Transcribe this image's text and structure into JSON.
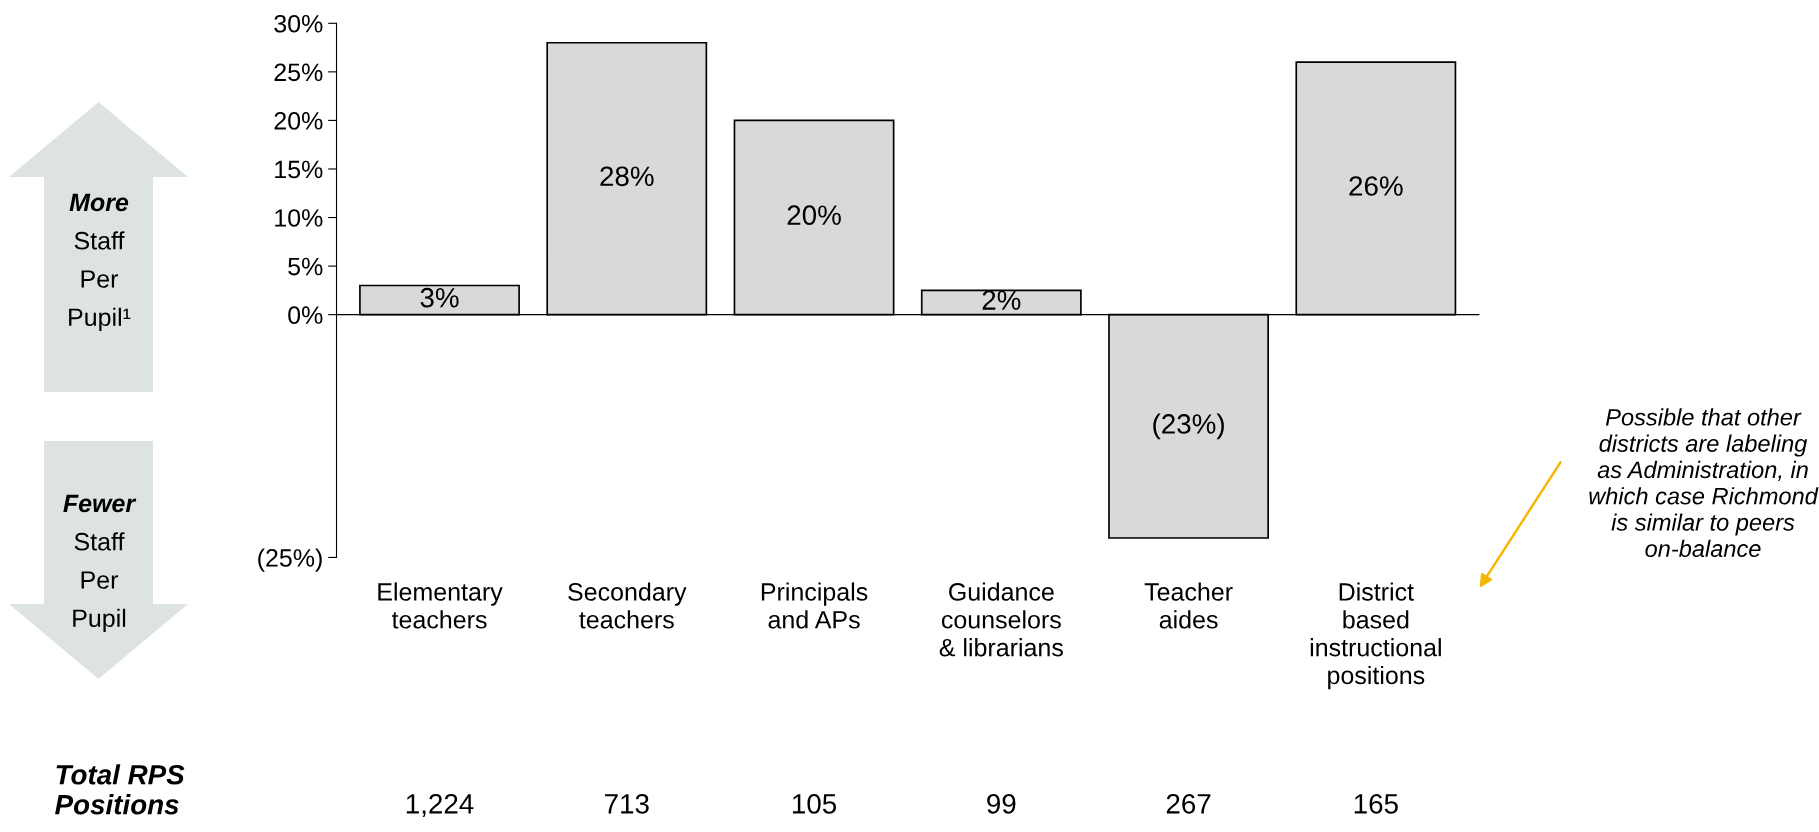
{
  "chart_data": {
    "type": "bar",
    "categories": [
      "Elementary\nteachers",
      "Secondary\nteachers",
      "Principals\nand APs",
      "Guidance\ncounselors\n& librarians",
      "Teacher\naides",
      "District\nbased\ninstructional\npositions"
    ],
    "values": [
      3,
      28,
      20,
      2.5,
      -23,
      26
    ],
    "value_labels": [
      "3%",
      "28%",
      "20%",
      "2%",
      "(23%)",
      "26%"
    ],
    "color": "#d9d9d9",
    "ylim": [
      -25,
      30
    ],
    "yticks": [
      {
        "value": -25,
        "label": "(25%)"
      },
      {
        "value": 0,
        "label": "0%"
      },
      {
        "value": 5,
        "label": "5%"
      },
      {
        "value": 10,
        "label": "10%"
      },
      {
        "value": 15,
        "label": "15%"
      },
      {
        "value": 20,
        "label": "20%"
      },
      {
        "value": 25,
        "label": "25%"
      },
      {
        "value": 30,
        "label": "30%"
      }
    ],
    "legend": false,
    "annotations": [
      "More\nStaff\nPer\nPupil¹",
      "Fewer\nStaff\nPer\nPupil",
      "Total RPS\nPositions",
      "1,224",
      "713",
      "105",
      "99",
      "267",
      "165",
      "Possible that other districts are labeling as Administration, in which case Richmond is similar to peers on-balance"
    ]
  }
}
